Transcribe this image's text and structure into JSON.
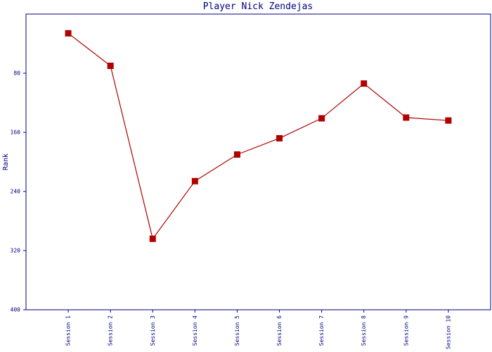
{
  "chart_data": {
    "type": "line",
    "title": "Player Nick Zendejas",
    "y_label": "Rank",
    "categories": [
      "Session 1",
      "Session 2",
      "Session 3",
      "Session 4",
      "Session 5",
      "Session 6",
      "Session 7",
      "Session 8",
      "Session 9",
      "Session 10"
    ],
    "series": [
      {
        "name": "Nick Zendejas",
        "color": "#b00000",
        "values": [
          26,
          70,
          304,
          226,
          190,
          168,
          141,
          94,
          140,
          144
        ]
      }
    ],
    "ylim": [
      0,
      400
    ],
    "y_inverted": true,
    "yticks": [
      80,
      160,
      240,
      320,
      400
    ],
    "grid": false
  }
}
